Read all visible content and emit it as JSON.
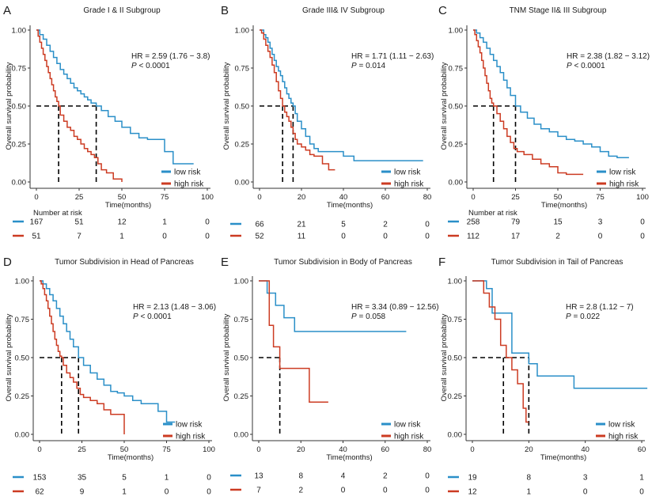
{
  "colors": {
    "low": "#2a8fc8",
    "high": "#cc3b22",
    "guide": "#000000",
    "axis": "#333333"
  },
  "chart_data": [
    {
      "type": "line",
      "letter": "A",
      "title": "Grade I & II Subgroup",
      "xlabel": "Time(months)",
      "ylabel": "Overall survival probability",
      "xlim": [
        0,
        100
      ],
      "ylim": [
        0,
        1
      ],
      "xticks": [
        0,
        25,
        50,
        75,
        100
      ],
      "xtick_labels": [
        "0",
        "25",
        "50",
        "75",
        "100"
      ],
      "yticks": [
        0,
        0.25,
        0.5,
        0.75,
        1
      ],
      "ytick_labels": [
        "0.00",
        "0.25",
        "0.50",
        "0.75",
        "1.00"
      ],
      "hr_text": "HR = 2.59 (1.76 − 3.8)",
      "p_label": "P",
      "p_text": " < 0.0001",
      "median_low": 35,
      "median_high": 13,
      "legend": [
        "low risk",
        "high risk"
      ],
      "series": [
        {
          "name": "low risk",
          "x": [
            0,
            2,
            4,
            6,
            8,
            10,
            12,
            14,
            16,
            18,
            20,
            22,
            24,
            26,
            28,
            30,
            32,
            35,
            38,
            42,
            46,
            50,
            55,
            60,
            65,
            70,
            75,
            80,
            85,
            92
          ],
          "y": [
            1,
            0.97,
            0.94,
            0.9,
            0.86,
            0.82,
            0.78,
            0.74,
            0.71,
            0.68,
            0.65,
            0.62,
            0.6,
            0.58,
            0.56,
            0.54,
            0.52,
            0.5,
            0.47,
            0.43,
            0.4,
            0.36,
            0.32,
            0.29,
            0.28,
            0.28,
            0.2,
            0.12,
            0.12,
            0.12
          ]
        },
        {
          "name": "high risk",
          "x": [
            0,
            1,
            2,
            3,
            4,
            5,
            6,
            7,
            8,
            9,
            10,
            11,
            12,
            13,
            14,
            16,
            18,
            20,
            22,
            24,
            26,
            28,
            30,
            32,
            34,
            36,
            38,
            41,
            45,
            50
          ],
          "y": [
            1,
            0.96,
            0.92,
            0.88,
            0.84,
            0.8,
            0.76,
            0.72,
            0.68,
            0.64,
            0.6,
            0.56,
            0.53,
            0.5,
            0.44,
            0.4,
            0.36,
            0.34,
            0.3,
            0.28,
            0.25,
            0.22,
            0.2,
            0.18,
            0.16,
            0.12,
            0.08,
            0.06,
            0.02,
            0
          ]
        }
      ],
      "risk_title": "Number at risk",
      "risk": [
        [
          "167",
          "51",
          "12",
          "1",
          "0"
        ],
        [
          "51",
          "7",
          "1",
          "0",
          "0"
        ]
      ]
    },
    {
      "type": "line",
      "letter": "B",
      "title": "Grade III& IV Subgroup",
      "xlabel": "Time(months)",
      "ylabel": "Overall survival probability",
      "xlim": [
        0,
        80
      ],
      "ylim": [
        0,
        1
      ],
      "xticks": [
        0,
        20,
        40,
        60,
        80
      ],
      "xtick_labels": [
        "0",
        "20",
        "40",
        "60",
        "80"
      ],
      "yticks": [
        0,
        0.25,
        0.5,
        0.75,
        1
      ],
      "ytick_labels": [
        "0.00",
        "0.25",
        "0.50",
        "0.75",
        "1.00"
      ],
      "hr_text": "HR = 1.71 (1.11 − 2.63)",
      "p_label": "P",
      "p_text": " = 0.014",
      "median_low": 16,
      "median_high": 11,
      "legend": [
        "low risk",
        "high risk"
      ],
      "series": [
        {
          "name": "low risk",
          "x": [
            0,
            1,
            2,
            3,
            4,
            5,
            6,
            7,
            8,
            9,
            10,
            11,
            12,
            13,
            14,
            15,
            16,
            17,
            18,
            20,
            22,
            24,
            26,
            28,
            32,
            40,
            45,
            50,
            60,
            70,
            78
          ],
          "y": [
            1,
            1,
            0.97,
            0.95,
            0.92,
            0.88,
            0.84,
            0.8,
            0.76,
            0.73,
            0.7,
            0.66,
            0.62,
            0.58,
            0.55,
            0.52,
            0.5,
            0.45,
            0.4,
            0.35,
            0.3,
            0.25,
            0.22,
            0.2,
            0.2,
            0.17,
            0.14,
            0.14,
            0.14,
            0.14,
            0.14
          ]
        },
        {
          "name": "high risk",
          "x": [
            0,
            1,
            2,
            3,
            4,
            5,
            6,
            7,
            8,
            9,
            10,
            11,
            12,
            13,
            14,
            15,
            16,
            17,
            18,
            20,
            22,
            24,
            26,
            28,
            30,
            33,
            36
          ],
          "y": [
            1,
            0.98,
            0.94,
            0.9,
            0.86,
            0.82,
            0.77,
            0.72,
            0.66,
            0.6,
            0.55,
            0.5,
            0.46,
            0.43,
            0.4,
            0.36,
            0.32,
            0.28,
            0.25,
            0.23,
            0.21,
            0.18,
            0.17,
            0.17,
            0.12,
            0.08,
            0.08
          ]
        }
      ],
      "risk_title": "",
      "risk": [
        [
          "66",
          "21",
          "5",
          "2",
          "0"
        ],
        [
          "52",
          "11",
          "0",
          "0",
          "0"
        ]
      ]
    },
    {
      "type": "line",
      "letter": "C",
      "title": "TNM Stage II& III Subgroup",
      "xlabel": "Time(months)",
      "ylabel": "Overall survival probability",
      "xlim": [
        0,
        100
      ],
      "ylim": [
        0,
        1
      ],
      "xticks": [
        0,
        25,
        50,
        75,
        100
      ],
      "xtick_labels": [
        "0",
        "25",
        "50",
        "75",
        "100"
      ],
      "yticks": [
        0,
        0.25,
        0.5,
        0.75,
        1
      ],
      "ytick_labels": [
        "0.00",
        "0.25",
        "0.50",
        "0.75",
        "1.00"
      ],
      "hr_text": "HR = 2.38 (1.82 − 3.12)",
      "p_label": "P",
      "p_text": " < 0.0001",
      "median_low": 25,
      "median_high": 12,
      "legend": [
        "low risk",
        "high risk"
      ],
      "series": [
        {
          "name": "low risk",
          "x": [
            0,
            2,
            4,
            6,
            8,
            10,
            12,
            14,
            16,
            18,
            20,
            22,
            25,
            28,
            32,
            36,
            40,
            45,
            50,
            55,
            60,
            65,
            70,
            75,
            80,
            85,
            92
          ],
          "y": [
            1,
            0.98,
            0.95,
            0.92,
            0.88,
            0.84,
            0.8,
            0.76,
            0.72,
            0.67,
            0.62,
            0.57,
            0.5,
            0.46,
            0.42,
            0.38,
            0.35,
            0.33,
            0.3,
            0.28,
            0.27,
            0.25,
            0.23,
            0.2,
            0.17,
            0.16,
            0.16
          ]
        },
        {
          "name": "high risk",
          "x": [
            0,
            1,
            2,
            3,
            4,
            5,
            6,
            7,
            8,
            9,
            10,
            11,
            12,
            14,
            16,
            18,
            20,
            22,
            24,
            26,
            30,
            35,
            40,
            45,
            50,
            55,
            60,
            65
          ],
          "y": [
            1,
            0.97,
            0.93,
            0.89,
            0.85,
            0.8,
            0.75,
            0.7,
            0.65,
            0.6,
            0.55,
            0.52,
            0.5,
            0.45,
            0.4,
            0.35,
            0.3,
            0.26,
            0.22,
            0.2,
            0.18,
            0.15,
            0.12,
            0.1,
            0.06,
            0.05,
            0.05,
            0.05
          ]
        }
      ],
      "risk_title": "Number at risk",
      "risk": [
        [
          "258",
          "79",
          "15",
          "3",
          "0"
        ],
        [
          "112",
          "17",
          "2",
          "0",
          "0"
        ]
      ]
    },
    {
      "type": "line",
      "letter": "D",
      "title": "Tumor Subdivision in Head of Pancreas",
      "xlabel": "Time(months)",
      "ylabel": "Overall survival probability",
      "xlim": [
        0,
        100
      ],
      "ylim": [
        0,
        1
      ],
      "xticks": [
        0,
        25,
        50,
        75,
        100
      ],
      "xtick_labels": [
        "0",
        "25",
        "50",
        "75",
        "100"
      ],
      "yticks": [
        0,
        0.25,
        0.5,
        0.75,
        1
      ],
      "ytick_labels": [
        "0.00",
        "0.25",
        "0.50",
        "0.75",
        "1.00"
      ],
      "hr_text": "HR = 2.13 (1.48 − 3.06)",
      "p_label": "P",
      "p_text": " < 0.0001",
      "median_low": 23,
      "median_high": 13,
      "legend": [
        "low risk",
        "high risk"
      ],
      "series": [
        {
          "name": "low risk",
          "x": [
            0,
            2,
            4,
            6,
            8,
            10,
            12,
            14,
            16,
            18,
            20,
            23,
            26,
            30,
            34,
            38,
            42,
            46,
            50,
            55,
            60,
            65,
            70,
            75,
            80
          ],
          "y": [
            1,
            0.98,
            0.95,
            0.91,
            0.87,
            0.82,
            0.77,
            0.72,
            0.67,
            0.62,
            0.57,
            0.5,
            0.45,
            0.4,
            0.36,
            0.32,
            0.28,
            0.27,
            0.25,
            0.22,
            0.2,
            0.2,
            0.15,
            0.08,
            0.08
          ]
        },
        {
          "name": "high risk",
          "x": [
            0,
            1,
            2,
            3,
            4,
            5,
            6,
            7,
            8,
            9,
            10,
            11,
            12,
            13,
            14,
            16,
            18,
            20,
            22,
            24,
            26,
            30,
            34,
            38,
            42,
            46,
            50
          ],
          "y": [
            1,
            0.98,
            0.95,
            0.91,
            0.87,
            0.82,
            0.77,
            0.72,
            0.67,
            0.62,
            0.58,
            0.54,
            0.51,
            0.5,
            0.45,
            0.4,
            0.37,
            0.34,
            0.3,
            0.26,
            0.24,
            0.22,
            0.2,
            0.16,
            0.13,
            0.13,
            0
          ]
        }
      ],
      "risk_title": "",
      "risk": [
        [
          "153",
          "35",
          "5",
          "1",
          "0"
        ],
        [
          "62",
          "9",
          "1",
          "0",
          "0"
        ]
      ]
    },
    {
      "type": "line",
      "letter": "E",
      "title": "Tumor Subdivision in Body of Pancreas",
      "xlabel": "Time(months)",
      "ylabel": "Overall survival probability",
      "xlim": [
        0,
        80
      ],
      "ylim": [
        0,
        1
      ],
      "xticks": [
        0,
        20,
        40,
        60,
        80
      ],
      "xtick_labels": [
        "0",
        "20",
        "40",
        "60",
        "80"
      ],
      "yticks": [
        0,
        0.25,
        0.5,
        0.75,
        1
      ],
      "ytick_labels": [
        "0.00",
        "0.25",
        "0.50",
        "0.75",
        "1.00"
      ],
      "hr_text": "HR = 3.34 (0.89 − 12.56)",
      "p_label": "P",
      "p_text": " = 0.058",
      "median_low": null,
      "median_high": 10,
      "legend": [
        "low risk",
        "high risk"
      ],
      "series": [
        {
          "name": "low risk",
          "x": [
            0,
            4,
            4,
            8,
            8,
            12,
            12,
            17,
            17,
            70
          ],
          "y": [
            1,
            1,
            0.92,
            0.92,
            0.84,
            0.84,
            0.76,
            0.76,
            0.67,
            0.67
          ]
        },
        {
          "name": "high risk",
          "x": [
            0,
            5,
            5,
            7,
            7,
            10,
            10,
            24,
            24,
            33
          ],
          "y": [
            1,
            1,
            0.71,
            0.71,
            0.57,
            0.57,
            0.43,
            0.43,
            0.21,
            0.21
          ]
        }
      ],
      "risk_title": "",
      "risk": [
        [
          "13",
          "8",
          "4",
          "2",
          "0"
        ],
        [
          "7",
          "2",
          "0",
          "0",
          "0"
        ]
      ]
    },
    {
      "type": "line",
      "letter": "F",
      "title": "Tumor Subdivision in Tail of Pancreas",
      "xlabel": "Time(months)",
      "ylabel": "Overall survival probability",
      "xlim": [
        0,
        60
      ],
      "ylim": [
        0,
        1
      ],
      "xticks": [
        0,
        20,
        40,
        60
      ],
      "xtick_labels": [
        "0",
        "20",
        "40",
        "60"
      ],
      "yticks": [
        0,
        0.25,
        0.5,
        0.75,
        1
      ],
      "ytick_labels": [
        "0.00",
        "0.25",
        "0.50",
        "0.75",
        "1.00"
      ],
      "hr_text": "HR = 2.8 (1.12 − 7)",
      "p_label": "P",
      "p_text": " = 0.022",
      "median_low": 20,
      "median_high": 11,
      "legend": [
        "low risk",
        "high risk"
      ],
      "series": [
        {
          "name": "low risk",
          "x": [
            0,
            5,
            5,
            7,
            7,
            14,
            14,
            20,
            20,
            23,
            23,
            36,
            36,
            62
          ],
          "y": [
            1,
            1,
            0.95,
            0.95,
            0.79,
            0.79,
            0.53,
            0.53,
            0.46,
            0.46,
            0.38,
            0.38,
            0.3,
            0.3
          ]
        },
        {
          "name": "high risk",
          "x": [
            0,
            4,
            4,
            6,
            6,
            8,
            8,
            10,
            10,
            12,
            12,
            14,
            14,
            16,
            16,
            18,
            18,
            19,
            19,
            20
          ],
          "y": [
            1,
            1,
            0.92,
            0.92,
            0.83,
            0.83,
            0.75,
            0.75,
            0.58,
            0.58,
            0.5,
            0.5,
            0.42,
            0.42,
            0.33,
            0.33,
            0.17,
            0.17,
            0.08,
            0.08
          ]
        }
      ],
      "risk_title": "",
      "risk": [
        [
          "19",
          "8",
          "3",
          "1"
        ],
        [
          "12",
          "1",
          "0",
          "0"
        ]
      ]
    }
  ]
}
